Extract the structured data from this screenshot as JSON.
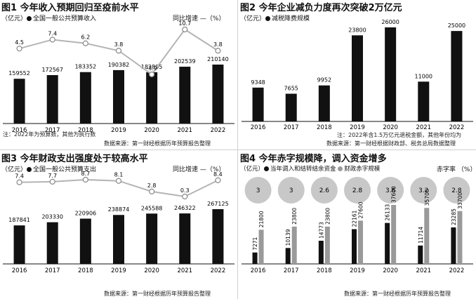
{
  "chart_data": [
    {
      "type": "bar",
      "title": "图1 今年收入预期回归至疫前水平",
      "unit": "（亿元）",
      "legend": {
        "bar": "全国一般公共预算收入",
        "line": "同比增速"
      },
      "line_unit": "—（%）",
      "categories": [
        "2016",
        "2017",
        "2018",
        "2019",
        "2020",
        "2021",
        "2022"
      ],
      "values": [
        159552,
        172567,
        183352,
        190382,
        182895,
        202539,
        210140
      ],
      "line": [
        4.5,
        7.4,
        6.2,
        3.8,
        -3.9,
        10.7,
        3.8
      ],
      "note": "注：2022年为预算数，其他为执行数",
      "source": "数据来源：第一财经根据历年预算报告整理"
    },
    {
      "type": "bar",
      "title": "图2 今年企业减负力度再次突破2万亿元",
      "unit": "（亿元）",
      "legend": {
        "bar": "减税降费规模"
      },
      "categories": [
        "2016",
        "2017",
        "2018",
        "2019",
        "2020",
        "2021",
        "2022"
      ],
      "values": [
        9348,
        7655,
        9952,
        23800,
        26000,
        11000,
        25000
      ],
      "note": "注：2022年含1.5万亿元退税金额，其他年份均为",
      "source": "数据来源：第一财经根据财政部、税务总局数据整理"
    },
    {
      "type": "bar",
      "title": "图3 今年财政支出强度处于较高水平",
      "unit": "（亿元）",
      "legend": {
        "bar": "全国一般公共预算支出",
        "line": "同比增速"
      },
      "line_unit": "—（%）",
      "categories": [
        "2016",
        "2017",
        "2018",
        "2019",
        "2020",
        "2021",
        "2022"
      ],
      "values": [
        187841,
        203330,
        220906,
        238874,
        245588,
        246322,
        267125
      ],
      "line": [
        7.4,
        7.7,
        8.7,
        8.1,
        2.8,
        0.3,
        8.4
      ],
      "source": "数据来源：第一财经根据历年预算报告整理"
    },
    {
      "type": "bar",
      "title": "图4 今年赤字规模降，调入资金增多",
      "unit": "（亿元）",
      "categories": [
        "2016",
        "2017",
        "2018",
        "2019",
        "2020",
        "2021",
        "2022"
      ],
      "series": [
        {
          "name": "当年调入和结转结余资金",
          "values": [
            7271,
            10139,
            14773,
            22161,
            26133,
            11714,
            23285
          ]
        },
        {
          "name": "财政赤字规模",
          "values": [
            21800,
            23800,
            23800,
            27600,
            37600,
            35700,
            33700
          ]
        }
      ],
      "circle_label": "赤字率",
      "circle_unit": "（%）",
      "circles": [
        3,
        3,
        2.6,
        2.8,
        3.6,
        3.2,
        2.8
      ],
      "source": "数据来源：第一财经根据历年预算报告整理"
    }
  ],
  "colors": {
    "bar": "#111111",
    "line": "#b4b4b4",
    "gray_bar": "#9a9a9a",
    "circle": "#c8c8c8"
  }
}
